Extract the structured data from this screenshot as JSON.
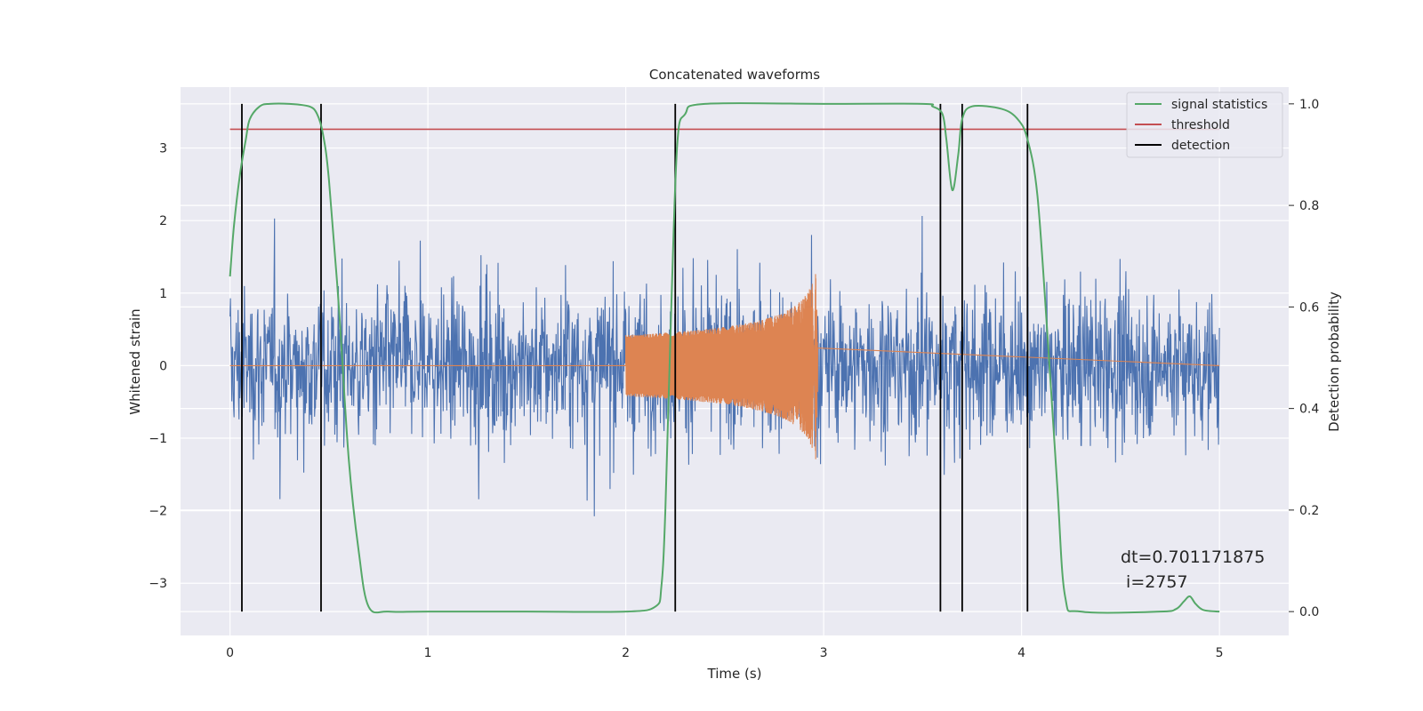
{
  "chart_data": {
    "type": "line",
    "title": "Concatenated waveforms",
    "xlabel": "Time (s)",
    "ylabel": "Whitened strain",
    "y2label": "Detection probability",
    "xlim": [
      -0.25,
      5.35
    ],
    "ylim": [
      -3.72,
      3.84
    ],
    "y2lim": [
      -0.047,
      1.033
    ],
    "xticks": [
      "0",
      "1",
      "2",
      "3",
      "4",
      "5"
    ],
    "yticks": [
      "−3",
      "−2",
      "−1",
      "0",
      "1",
      "2",
      "3"
    ],
    "y2ticks": [
      "0.0",
      "0.2",
      "0.4",
      "0.6",
      "0.8",
      "1.0"
    ],
    "grid": true,
    "legend_position": "top-right",
    "series": [
      {
        "name": "signal statistics",
        "axis": "right",
        "color": "#55a868",
        "x": [
          0.0,
          0.02,
          0.05,
          0.08,
          0.1,
          0.15,
          0.2,
          0.3,
          0.4,
          0.44,
          0.47,
          0.5,
          0.55,
          0.6,
          0.65,
          0.7,
          0.8,
          1.0,
          1.5,
          2.0,
          2.15,
          2.18,
          2.2,
          2.23,
          2.26,
          2.3,
          2.4,
          3.0,
          3.5,
          3.55,
          3.6,
          3.62,
          3.65,
          3.68,
          3.7,
          3.75,
          3.9,
          3.98,
          4.03,
          4.08,
          4.13,
          4.18,
          4.22,
          4.3,
          4.7,
          4.78,
          4.82,
          4.85,
          4.88,
          4.92,
          5.0
        ],
        "y": [
          0.66,
          0.76,
          0.86,
          0.93,
          0.97,
          0.995,
          1.0,
          1.0,
          0.995,
          0.98,
          0.94,
          0.85,
          0.6,
          0.3,
          0.12,
          0.01,
          0.0,
          0.0,
          0.0,
          0.0,
          0.01,
          0.05,
          0.2,
          0.6,
          0.92,
          0.98,
          1.0,
          1.0,
          1.0,
          0.995,
          0.98,
          0.93,
          0.83,
          0.9,
          0.97,
          0.995,
          0.99,
          0.97,
          0.93,
          0.82,
          0.55,
          0.25,
          0.03,
          0.0,
          0.0,
          0.005,
          0.02,
          0.03,
          0.015,
          0.003,
          0.0
        ]
      },
      {
        "name": "threshold",
        "axis": "right",
        "color": "#c44e52",
        "x": [
          0.0,
          5.0
        ],
        "y": [
          0.95,
          0.95
        ]
      },
      {
        "name": "detection",
        "axis": "right",
        "color": "#000000",
        "x": [
          0.06,
          0.46,
          2.25,
          3.59,
          3.7,
          4.03
        ],
        "y_range": [
          0.0,
          1.0
        ]
      }
    ],
    "annotation": {
      "line1": "dt=0.701171875",
      "line2": " i=2757"
    }
  }
}
